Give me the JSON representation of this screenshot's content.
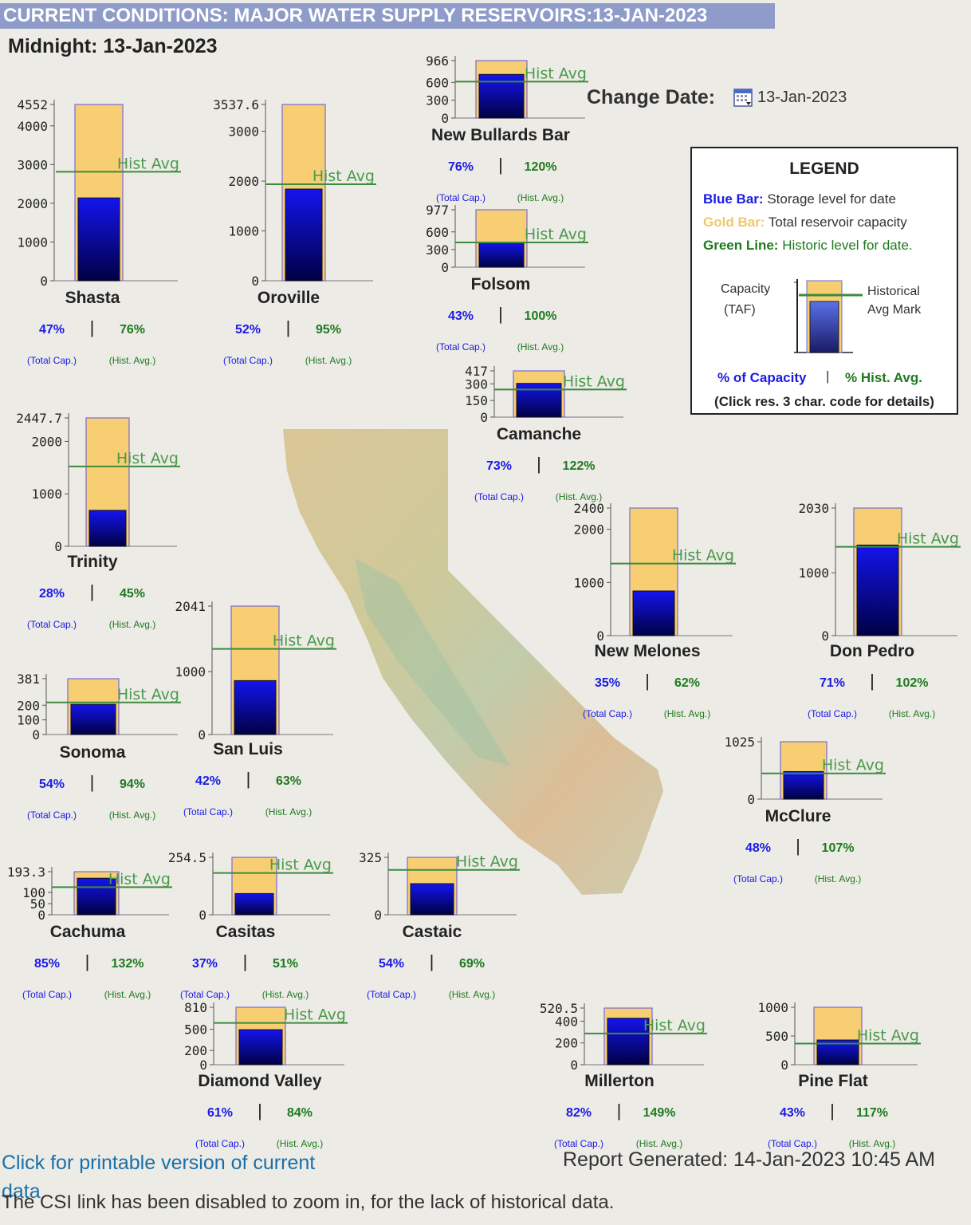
{
  "header": {
    "title": "CURRENT CONDITIONS: MAJOR WATER SUPPLY RESERVOIRS:13-JAN-2023",
    "midnight": "Midnight: 13-Jan-2023",
    "change_date_label": "Change Date:",
    "date_value": "13-Jan-2023"
  },
  "legend": {
    "title": "LEGEND",
    "blue_key": "Blue Bar:",
    "blue_text": "Storage level for date",
    "gold_key": "Gold Bar:",
    "gold_text": "Total reservoir capacity",
    "green_key": "Green Line:",
    "green_text": "Historic level for date.",
    "capacity_line1": "Capacity",
    "capacity_line2": "(TAF)",
    "hist_line1": "Historical",
    "hist_line2": "Avg Mark",
    "pct_capacity": "% of Capacity",
    "pct_hist": "% Hist. Avg.",
    "separator": "|",
    "note": "(Click res. 3 char. code for details)"
  },
  "labels": {
    "hist_avg": "Hist Avg",
    "total_cap": "(Total Cap.)",
    "hist_avg_paren": "(Hist. Avg.)",
    "separator": "|"
  },
  "colors": {
    "gold": "#f7cf72",
    "blue_top": "#1414ee",
    "blue_bottom": "#000044",
    "hist_line": "#3d8b3d",
    "pct_cap": "#1a1ae6",
    "pct_hist": "#1e7a1e"
  },
  "chart_data": [
    {
      "type": "bar",
      "name": "Shasta",
      "capacity": 4552,
      "storage": 2139,
      "hist_avg": 2815,
      "pct_capacity": "47%",
      "pct_hist": "76%",
      "ticks": [
        "0",
        "1000",
        "2000",
        "3000",
        "4000",
        "4552"
      ]
    },
    {
      "type": "bar",
      "name": "Oroville",
      "capacity": 3537.6,
      "storage": 1840,
      "hist_avg": 1937,
      "pct_capacity": "52%",
      "pct_hist": "95%",
      "ticks": [
        "0",
        "1000",
        "2000",
        "3000",
        "3537.6"
      ]
    },
    {
      "type": "bar",
      "name": "New Bullards Bar",
      "capacity": 966,
      "storage": 734,
      "hist_avg": 612,
      "pct_capacity": "76%",
      "pct_hist": "120%",
      "ticks": [
        "0",
        "300",
        "600",
        "966"
      ]
    },
    {
      "type": "bar",
      "name": "Folsom",
      "capacity": 977,
      "storage": 420,
      "hist_avg": 420,
      "pct_capacity": "43%",
      "pct_hist": "100%",
      "ticks": [
        "0",
        "300",
        "600",
        "977"
      ]
    },
    {
      "type": "bar",
      "name": "Camanche",
      "capacity": 417,
      "storage": 304,
      "hist_avg": 249,
      "pct_capacity": "73%",
      "pct_hist": "122%",
      "ticks": [
        "0",
        "150",
        "300",
        "417"
      ]
    },
    {
      "type": "bar",
      "name": "Trinity",
      "capacity": 2447.7,
      "storage": 685,
      "hist_avg": 1522,
      "pct_capacity": "28%",
      "pct_hist": "45%",
      "ticks": [
        "0",
        "1000",
        "2000",
        "2447.7"
      ]
    },
    {
      "type": "bar",
      "name": "New Melones",
      "capacity": 2400,
      "storage": 840,
      "hist_avg": 1355,
      "pct_capacity": "35%",
      "pct_hist": "62%",
      "ticks": [
        "0",
        "1000",
        "2000",
        "2400"
      ]
    },
    {
      "type": "bar",
      "name": "Don Pedro",
      "capacity": 2030,
      "storage": 1441,
      "hist_avg": 1413,
      "pct_capacity": "71%",
      "pct_hist": "102%",
      "ticks": [
        "0",
        "1000",
        "2030"
      ]
    },
    {
      "type": "bar",
      "name": "Sonoma",
      "capacity": 381,
      "storage": 206,
      "hist_avg": 219,
      "pct_capacity": "54%",
      "pct_hist": "94%",
      "ticks": [
        "0",
        "100",
        "200",
        "381"
      ]
    },
    {
      "type": "bar",
      "name": "San Luis",
      "capacity": 2041,
      "storage": 857,
      "hist_avg": 1361,
      "pct_capacity": "42%",
      "pct_hist": "63%",
      "ticks": [
        "0",
        "1000",
        "2041"
      ]
    },
    {
      "type": "bar",
      "name": "McClure",
      "capacity": 1025,
      "storage": 492,
      "hist_avg": 460,
      "pct_capacity": "48%",
      "pct_hist": "107%",
      "ticks": [
        "0",
        "1025"
      ]
    },
    {
      "type": "bar",
      "name": "Cachuma",
      "capacity": 193.3,
      "storage": 164,
      "hist_avg": 124,
      "pct_capacity": "85%",
      "pct_hist": "132%",
      "ticks": [
        "0",
        "50",
        "100",
        "193.3"
      ]
    },
    {
      "type": "bar",
      "name": "Casitas",
      "capacity": 254.5,
      "storage": 94,
      "hist_avg": 185,
      "pct_capacity": "37%",
      "pct_hist": "51%",
      "ticks": [
        "0",
        "254.5"
      ]
    },
    {
      "type": "bar",
      "name": "Castaic",
      "capacity": 325,
      "storage": 176,
      "hist_avg": 254,
      "pct_capacity": "54%",
      "pct_hist": "69%",
      "ticks": [
        "0",
        "325"
      ]
    },
    {
      "type": "bar",
      "name": "Diamond Valley",
      "capacity": 810,
      "storage": 494,
      "hist_avg": 589,
      "pct_capacity": "61%",
      "pct_hist": "84%",
      "ticks": [
        "0",
        "200",
        "500",
        "810"
      ]
    },
    {
      "type": "bar",
      "name": "Millerton",
      "capacity": 520.5,
      "storage": 427,
      "hist_avg": 287,
      "pct_capacity": "82%",
      "pct_hist": "149%",
      "ticks": [
        "0",
        "200",
        "400",
        "520.5"
      ]
    },
    {
      "type": "bar",
      "name": "Pine Flat",
      "capacity": 1000,
      "storage": 430,
      "hist_avg": 368,
      "pct_capacity": "43%",
      "pct_hist": "117%",
      "ticks": [
        "0",
        "500",
        "1000"
      ]
    }
  ],
  "footer": {
    "print_link": "Click for printable version of current data",
    "report": "Report Generated: 14-Jan-2023 10:45 AM",
    "csi_note": "The CSI link has been disabled to zoom in, for the lack of historical data."
  }
}
